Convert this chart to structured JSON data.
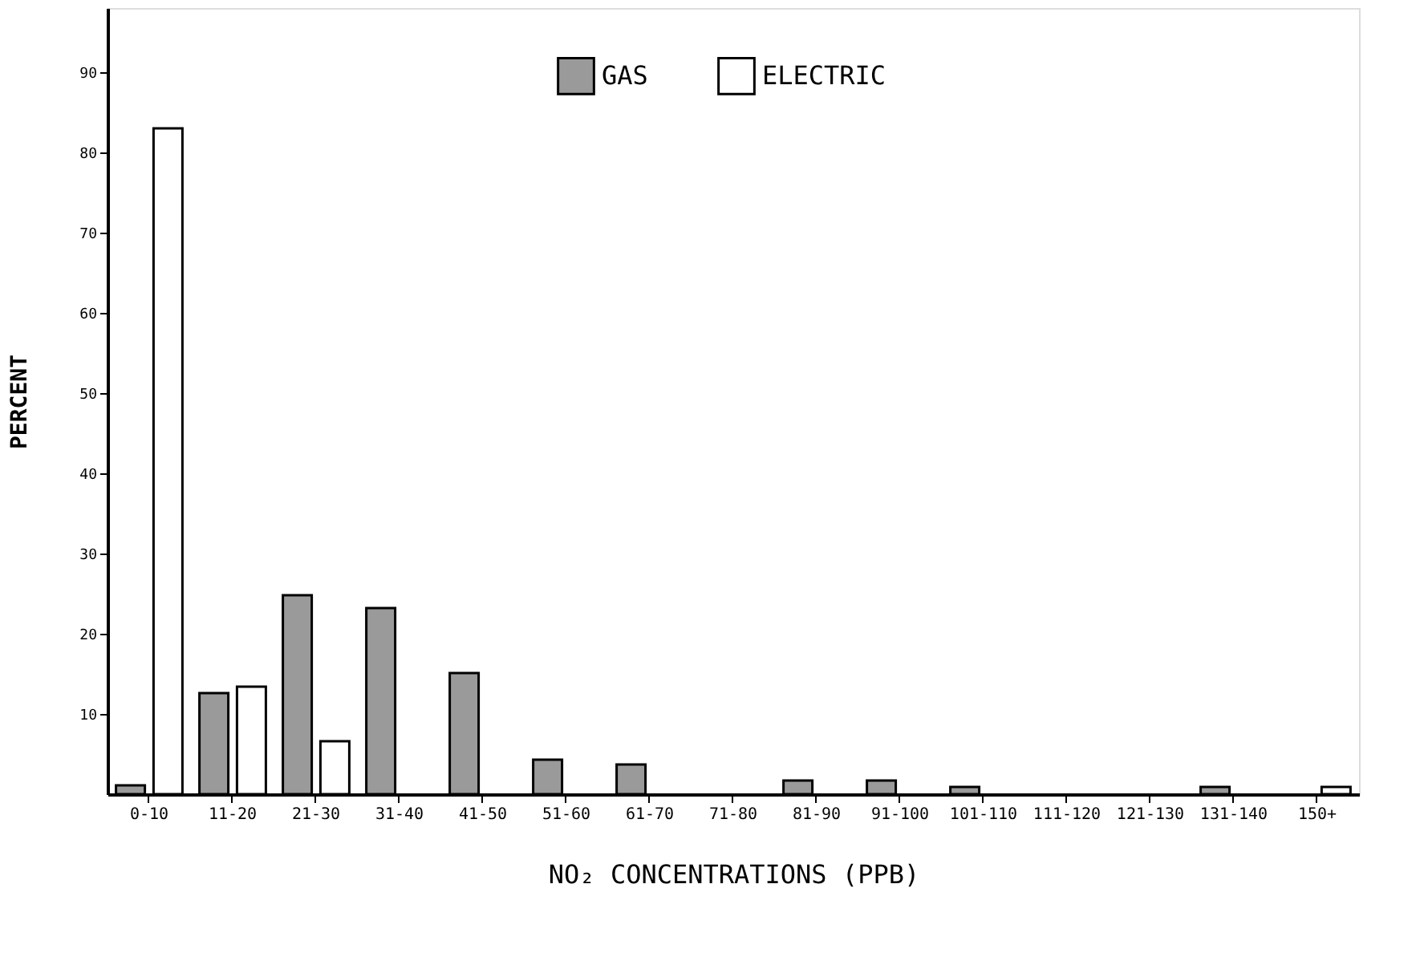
{
  "chart_data": {
    "type": "bar",
    "xlabel": "NO₂ CONCENTRATIONS  (PPB)",
    "ylabel": "PERCENT",
    "categories": [
      "0-10",
      "11-20",
      "21-30",
      "31-40",
      "41-50",
      "51-60",
      "61-70",
      "71-80",
      "81-90",
      "91-100",
      "101-110",
      "111-120",
      "121-130",
      "131-140",
      "150+"
    ],
    "series": [
      {
        "name": "GAS",
        "color": "#9a9a9a",
        "values": [
          1.1,
          12.6,
          24.8,
          23.2,
          15.1,
          4.3,
          3.7,
          null,
          1.7,
          1.7,
          0.9,
          null,
          null,
          0.9,
          null
        ]
      },
      {
        "name": "ELECTRIC",
        "color": "#ffffff",
        "values": [
          83,
          13.4,
          6.6,
          null,
          null,
          null,
          null,
          null,
          null,
          null,
          null,
          null,
          null,
          null,
          0.9
        ]
      }
    ],
    "ylim": [
      0,
      98
    ],
    "yticks": [
      10,
      20,
      30,
      40,
      50,
      60,
      70,
      80,
      90
    ],
    "grid": false,
    "legend": "top"
  }
}
